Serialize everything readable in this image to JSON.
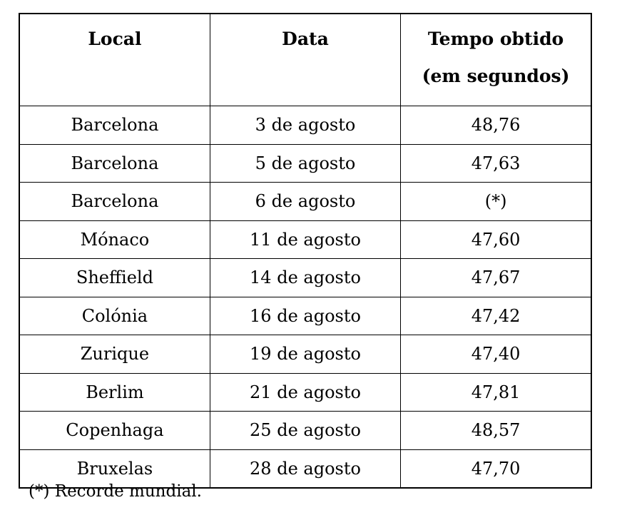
{
  "table": {
    "headers": [
      {
        "line1": "Local",
        "line2": ""
      },
      {
        "line1": "Data",
        "line2": ""
      },
      {
        "line1": "Tempo obtido",
        "line2": "(em segundos)"
      }
    ],
    "rows": [
      {
        "local": "Barcelona",
        "data": "3 de agosto",
        "tempo": "48,76"
      },
      {
        "local": "Barcelona",
        "data": "5 de agosto",
        "tempo": "47,63"
      },
      {
        "local": "Barcelona",
        "data": "6 de agosto",
        "tempo": "(*)"
      },
      {
        "local": "Mónaco",
        "data": "11 de agosto",
        "tempo": "47,60"
      },
      {
        "local": "Sheffield",
        "data": "14 de agosto",
        "tempo": "47,67"
      },
      {
        "local": "Colónia",
        "data": "16 de agosto",
        "tempo": "47,42"
      },
      {
        "local": "Zurique",
        "data": "19 de agosto",
        "tempo": "47,40"
      },
      {
        "local": "Berlim",
        "data": "21 de agosto",
        "tempo": "47,81"
      },
      {
        "local": "Copenhaga",
        "data": "25 de agosto",
        "tempo": "48,57"
      },
      {
        "local": "Bruxelas",
        "data": "28 de agosto",
        "tempo": "47,70"
      }
    ]
  },
  "footnote": "(*) Recorde mundial.",
  "colors": {
    "background": "#ffffff",
    "text": "#000000",
    "border": "#000000"
  }
}
